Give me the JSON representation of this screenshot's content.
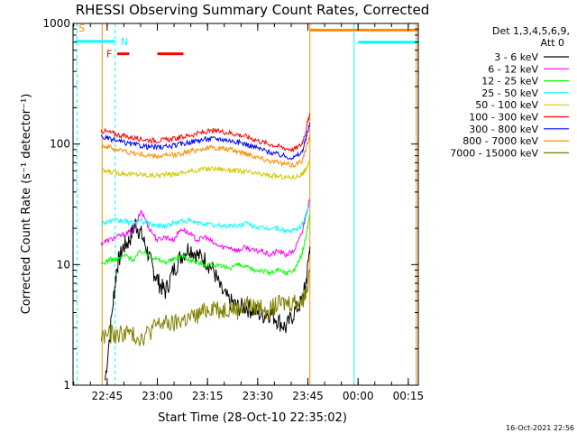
{
  "chart_data": {
    "type": "line",
    "title": "RHESSI Observing Summary Count Rates, Corrected",
    "ylabel": "Corrected Count Rate (s⁻¹ detector⁻¹)",
    "xlabel": "Start Time (28-Oct-10 22:35:02)",
    "y_scale": "log",
    "ylim": [
      1,
      1000
    ],
    "xlim_minutes": [
      22.58,
      24.3
    ],
    "y_ticks": [
      {
        "value": 1,
        "label": "1"
      },
      {
        "value": 10,
        "label": "10"
      },
      {
        "value": 100,
        "label": "100"
      },
      {
        "value": 1000,
        "label": "1000"
      }
    ],
    "x_ticks": [
      {
        "value": 22.75,
        "label": "22:45"
      },
      {
        "value": 23.0,
        "label": "23:00"
      },
      {
        "value": 23.25,
        "label": "23:15"
      },
      {
        "value": 23.5,
        "label": "23:30"
      },
      {
        "value": 23.75,
        "label": "23:45"
      },
      {
        "value": 24.0,
        "label": "00:00"
      },
      {
        "value": 24.25,
        "label": "00:15"
      }
    ],
    "legend_header": [
      "Det 1,3,4,5,6,9,",
      "Att 0"
    ],
    "legend_position": "right",
    "series": [
      {
        "name": "3 - 6 keV",
        "color": "#000000",
        "x": [
          22.74,
          22.78,
          22.8,
          22.83,
          22.86,
          22.89,
          22.92,
          22.95,
          22.98,
          23.01,
          23.04,
          23.08,
          23.12,
          23.16,
          23.2,
          23.24,
          23.28,
          23.32,
          23.36,
          23.4,
          23.44,
          23.48,
          23.52,
          23.56,
          23.6,
          23.64,
          23.68,
          23.72,
          23.74,
          23.76
        ],
        "y": [
          1.1,
          5,
          10,
          14,
          16,
          22,
          18,
          13,
          9,
          7,
          6,
          9,
          12,
          14,
          12,
          11,
          9,
          6,
          5,
          4.5,
          4.5,
          4.2,
          3.8,
          4,
          3.5,
          3,
          4,
          5,
          7,
          14
        ]
      },
      {
        "name": "6 - 12 keV",
        "color": "#ff00ff",
        "x": [
          22.72,
          22.76,
          22.8,
          22.84,
          22.88,
          22.92,
          22.96,
          23.0,
          23.04,
          23.08,
          23.12,
          23.16,
          23.2,
          23.24,
          23.28,
          23.32,
          23.36,
          23.4,
          23.44,
          23.48,
          23.52,
          23.56,
          23.6,
          23.64,
          23.68,
          23.72,
          23.74,
          23.76
        ],
        "y": [
          15,
          16,
          17,
          18,
          19,
          28,
          20,
          16,
          17,
          16,
          20,
          18,
          16,
          17,
          15,
          14,
          14,
          13,
          14,
          13,
          13,
          12,
          13,
          12,
          13,
          18,
          26,
          35
        ]
      },
      {
        "name": "12 - 25 keV",
        "color": "#00ff00",
        "x": [
          22.72,
          22.76,
          22.8,
          22.84,
          22.88,
          22.92,
          22.96,
          23.0,
          23.04,
          23.08,
          23.12,
          23.16,
          23.2,
          23.24,
          23.28,
          23.32,
          23.36,
          23.4,
          23.44,
          23.48,
          23.52,
          23.56,
          23.6,
          23.64,
          23.68,
          23.72,
          23.74,
          23.76
        ],
        "y": [
          10,
          11,
          11,
          12,
          11,
          13,
          12,
          11,
          10.5,
          11,
          12,
          11,
          10.5,
          10,
          10,
          9.5,
          9.5,
          10,
          9.5,
          9,
          9,
          8.5,
          9,
          8.5,
          9,
          12,
          17,
          26
        ]
      },
      {
        "name": "25 - 50 keV",
        "color": "#00ffff",
        "x": [
          22.72,
          22.76,
          22.8,
          22.84,
          22.88,
          22.92,
          22.96,
          23.0,
          23.04,
          23.08,
          23.12,
          23.16,
          23.2,
          23.24,
          23.28,
          23.32,
          23.36,
          23.4,
          23.44,
          23.48,
          23.52,
          23.56,
          23.6,
          23.64,
          23.68,
          23.72,
          23.74,
          23.76
        ],
        "y": [
          22,
          23,
          23,
          23,
          22,
          23,
          22,
          21,
          21,
          22,
          23,
          23,
          22,
          22,
          21,
          21,
          21,
          21,
          22,
          21,
          20,
          20,
          20,
          19,
          19,
          21,
          26,
          32
        ]
      },
      {
        "name": "50 - 100 keV",
        "color": "#d4c800",
        "x": [
          22.72,
          22.76,
          22.8,
          22.84,
          22.88,
          22.92,
          22.96,
          23.0,
          23.04,
          23.08,
          23.12,
          23.16,
          23.2,
          23.24,
          23.28,
          23.32,
          23.36,
          23.4,
          23.44,
          23.48,
          23.52,
          23.56,
          23.6,
          23.64,
          23.68,
          23.72,
          23.74,
          23.76
        ],
        "y": [
          60,
          59,
          58,
          57,
          56,
          56,
          55,
          55,
          56,
          56,
          58,
          59,
          61,
          62,
          63,
          62,
          61,
          60,
          59,
          57,
          56,
          55,
          54,
          53,
          53,
          56,
          62,
          72
        ]
      },
      {
        "name": "100 - 300 keV",
        "color": "#ff0000",
        "x": [
          22.72,
          22.76,
          22.8,
          22.84,
          22.88,
          22.92,
          22.96,
          23.0,
          23.04,
          23.08,
          23.12,
          23.16,
          23.2,
          23.24,
          23.28,
          23.32,
          23.36,
          23.4,
          23.44,
          23.48,
          23.52,
          23.56,
          23.6,
          23.64,
          23.68,
          23.72,
          23.74,
          23.76
        ],
        "y": [
          130,
          125,
          120,
          116,
          113,
          110,
          108,
          107,
          108,
          110,
          114,
          118,
          122,
          126,
          128,
          127,
          124,
          120,
          116,
          110,
          104,
          100,
          96,
          92,
          90,
          100,
          130,
          180
        ]
      },
      {
        "name": "300 - 800 keV",
        "color": "#0000ff",
        "x": [
          22.72,
          22.76,
          22.8,
          22.84,
          22.88,
          22.92,
          22.96,
          23.0,
          23.04,
          23.08,
          23.12,
          23.16,
          23.2,
          23.24,
          23.28,
          23.32,
          23.36,
          23.4,
          23.44,
          23.48,
          23.52,
          23.56,
          23.6,
          23.64,
          23.68,
          23.72,
          23.74,
          23.76
        ],
        "y": [
          115,
          110,
          106,
          102,
          99,
          97,
          95,
          94,
          95,
          97,
          100,
          104,
          107,
          110,
          111,
          110,
          107,
          104,
          100,
          95,
          90,
          86,
          82,
          79,
          77,
          85,
          110,
          150
        ]
      },
      {
        "name": "800 - 7000 keV",
        "color": "#ff8c00",
        "x": [
          22.72,
          22.76,
          22.8,
          22.84,
          22.88,
          22.92,
          22.96,
          23.0,
          23.04,
          23.08,
          23.12,
          23.16,
          23.2,
          23.24,
          23.28,
          23.32,
          23.36,
          23.4,
          23.44,
          23.48,
          23.52,
          23.56,
          23.6,
          23.64,
          23.68,
          23.72,
          23.74,
          23.76
        ],
        "y": [
          98,
          94,
          90,
          87,
          84,
          82,
          80,
          79,
          80,
          81,
          84,
          87,
          90,
          92,
          93,
          92,
          90,
          87,
          84,
          80,
          76,
          73,
          70,
          68,
          67,
          73,
          90,
          120
        ]
      },
      {
        "name": "7000 - 15000 keV",
        "color": "#808000",
        "x": [
          22.72,
          22.76,
          22.8,
          22.84,
          22.88,
          22.92,
          22.96,
          23.0,
          23.04,
          23.08,
          23.12,
          23.16,
          23.2,
          23.24,
          23.28,
          23.32,
          23.36,
          23.4,
          23.44,
          23.48,
          23.52,
          23.56,
          23.6,
          23.64,
          23.68,
          23.72,
          23.74,
          23.76
        ],
        "y": [
          2.5,
          2.7,
          2.6,
          2.8,
          2.6,
          2.5,
          2.8,
          3.2,
          3.3,
          3.2,
          3.5,
          3.6,
          3.8,
          4.2,
          4.6,
          4.2,
          4.5,
          4.2,
          4.8,
          4.4,
          4.6,
          4.3,
          4.7,
          4.8,
          5,
          5,
          6,
          9
        ]
      }
    ],
    "flags": [
      {
        "label": "S",
        "color": "#ff8c00",
        "x_start": 22.59,
        "x_end": 22.6,
        "y": 920
      },
      {
        "label": "N",
        "color": "#00ffff",
        "x_start": 22.59,
        "x_end": 22.79,
        "y": 710
      },
      {
        "label": "F",
        "color": "#ff0000",
        "x_start": 22.8,
        "x_end": 22.87,
        "y": 560
      }
    ],
    "flag_bars": [
      {
        "color": "#00ffff",
        "x_start": 22.59,
        "x_end": 22.79,
        "y": 710
      },
      {
        "color": "#ff0000",
        "x_start": 22.8,
        "x_end": 22.86,
        "y": 560
      },
      {
        "color": "#ff0000",
        "x_start": 23.0,
        "x_end": 23.13,
        "y": 560
      },
      {
        "color": "#ff8c00",
        "x_start": 23.76,
        "x_end": 24.3,
        "y": 880
      },
      {
        "color": "#00ffff",
        "x_start": 24.0,
        "x_end": 24.3,
        "y": 700
      }
    ],
    "vertical_markers": [
      {
        "x": 22.6,
        "color": "#00ffff",
        "style": "dashed"
      },
      {
        "x": 22.79,
        "color": "#00ffff",
        "style": "dashed"
      },
      {
        "x": 22.725,
        "color": "#ff8c00",
        "style": "solid"
      },
      {
        "x": 23.76,
        "color": "#ff8c00",
        "style": "solid"
      },
      {
        "x": 23.98,
        "color": "#00ffff",
        "style": "solid"
      },
      {
        "x": 24.29,
        "color": "#ff8c00",
        "style": "solid"
      },
      {
        "x": 24.3,
        "color": "#00ffff",
        "style": "dashed"
      }
    ],
    "timestamp": "16-Oct-2021 22:56"
  }
}
